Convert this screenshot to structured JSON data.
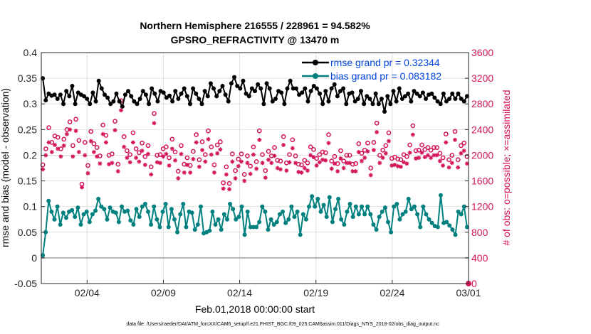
{
  "chart_data": {
    "type": "line",
    "title": "Northern Hemisphere 216555 / 228961 = 94.582%",
    "subtitle": "GPSRO_REFRACTIVITY @ 13470 m",
    "xlabel": "Feb.01,2018 00:00:00 start",
    "ylabel": "rmse and bias (model - observation)",
    "ylabel_right": "# of obs: o=possible; ×=assimilated",
    "footnote": "data file: /Users/raeder/DAI/ATM_forcXX/CAM6_setup/f.e21.FHIST_BGC.f09_025.CAM6assim.011/Diags_NTrS_2018-02/obs_diag_output.nc",
    "x_ticks": [
      "02/04",
      "02/09",
      "02/14",
      "02/19",
      "02/24",
      "03/01"
    ],
    "y_ticks": [
      "-0.05",
      "0",
      "0.05",
      "0.1",
      "0.15",
      "0.2",
      "0.25",
      "0.3",
      "0.35",
      "0.4"
    ],
    "y2_ticks": [
      "0",
      "400",
      "800",
      "1200",
      "1600",
      "2000",
      "2400",
      "2800",
      "3200",
      "3600"
    ],
    "ylim": [
      -0.05,
      0.4
    ],
    "y2lim": [
      0,
      3600
    ],
    "xlim": [
      0,
      28
    ],
    "legend": [
      "rmse grand pr = 0.32344",
      "bias grand pr = 0.083182"
    ],
    "colors": {
      "rmse": "#000000",
      "bias": "#00807f",
      "obs": "#d4145a",
      "zero_line": "#b3b3b3",
      "legend_text": "#0044dd"
    },
    "series": [
      {
        "name": "rmse",
        "values": [
          0.35,
          0.307,
          0.32,
          0.316,
          0.318,
          0.31,
          0.318,
          0.3,
          0.325,
          0.315,
          0.335,
          0.3,
          0.322,
          0.318,
          0.315,
          0.31,
          0.3,
          0.322,
          0.305,
          0.345,
          0.33,
          0.318,
          0.312,
          0.3,
          0.305,
          0.32,
          0.305,
          0.295,
          0.318,
          0.325,
          0.315,
          0.305,
          0.3,
          0.31,
          0.325,
          0.318,
          0.3,
          0.33,
          0.32,
          0.305,
          0.325,
          0.322,
          0.312,
          0.316,
          0.305,
          0.325,
          0.31,
          0.32,
          0.33,
          0.315,
          0.3,
          0.33,
          0.32,
          0.31,
          0.3,
          0.325,
          0.315,
          0.34,
          0.33,
          0.315,
          0.325,
          0.335,
          0.318,
          0.305,
          0.34,
          0.352,
          0.335,
          0.33,
          0.345,
          0.32,
          0.315,
          0.33,
          0.325,
          0.338,
          0.33,
          0.3,
          0.34,
          0.33,
          0.305,
          0.31,
          0.325,
          0.322,
          0.3,
          0.33,
          0.345,
          0.33,
          0.33,
          0.318,
          0.322,
          0.33,
          0.305,
          0.325,
          0.335,
          0.33,
          0.32,
          0.3,
          0.325,
          0.305,
          0.33,
          0.338,
          0.315,
          0.325,
          0.33,
          0.3,
          0.32,
          0.322,
          0.305,
          0.31,
          0.325,
          0.3,
          0.315,
          0.31,
          0.3,
          0.32,
          0.3,
          0.31,
          0.285,
          0.315,
          0.3,
          0.325,
          0.305,
          0.33,
          0.31,
          0.315,
          0.32,
          0.305,
          0.325,
          0.32,
          0.315,
          0.322,
          0.31,
          0.318,
          0.32,
          0.312,
          0.305,
          0.3,
          0.32,
          0.305,
          0.31,
          0.32,
          0.31,
          0.32,
          0.31,
          0.305,
          0.315
        ]
      },
      {
        "name": "bias",
        "values": [
          0.005,
          0.05,
          0.111,
          0.09,
          0.075,
          0.1,
          0.065,
          0.088,
          0.078,
          0.09,
          0.093,
          0.08,
          0.098,
          0.065,
          0.085,
          0.09,
          0.07,
          0.085,
          0.092,
          0.115,
          0.1,
          0.095,
          0.075,
          0.098,
          0.09,
          0.088,
          0.07,
          0.1,
          0.09,
          0.092,
          0.073,
          0.065,
          0.095,
          0.08,
          0.1,
          0.105,
          0.09,
          0.065,
          0.1,
          0.075,
          0.06,
          0.09,
          0.105,
          0.06,
          0.095,
          0.075,
          0.05,
          0.085,
          0.105,
          0.06,
          0.09,
          0.088,
          0.055,
          0.065,
          0.1,
          0.048,
          0.05,
          0.053,
          0.09,
          0.065,
          0.075,
          0.055,
          0.085,
          0.075,
          0.105,
          0.095,
          0.075,
          0.08,
          0.1,
          0.045,
          0.09,
          0.06,
          0.06,
          0.06,
          0.07,
          0.1,
          0.09,
          0.055,
          0.075,
          0.065,
          0.07,
          0.085,
          0.09,
          0.068,
          0.075,
          0.1,
          0.08,
          0.09,
          0.045,
          0.085,
          0.075,
          0.1,
          0.12,
          0.1,
          0.115,
          0.09,
          0.103,
          0.08,
          0.118,
          0.07,
          0.095,
          0.115,
          0.075,
          0.065,
          0.09,
          0.105,
          0.08,
          0.1,
          0.085,
          0.1,
          0.085,
          0.1,
          0.085,
          0.065,
          0.055,
          0.08,
          0.09,
          0.098,
          0.07,
          0.05,
          0.1,
          0.105,
          0.075,
          0.085,
          0.09,
          0.115,
          0.095,
          0.1,
          0.085,
          0.06,
          0.1,
          0.085,
          0.075,
          0.068,
          0.062,
          0.06,
          0.122,
          0.068,
          0.07,
          0.063,
          0.055,
          0.045,
          0.09,
          0.085,
          0.1,
          0.06
        ]
      },
      {
        "name": "possible",
        "values": [
          1850,
          2100,
          2430,
          2200,
          2300,
          2280,
          2100,
          2250,
          2400,
          2520,
          2150,
          2560,
          2230,
          1550,
          2200,
          1840,
          2370,
          2180,
          2120,
          1990,
          2470,
          2310,
          2000,
          2020,
          2530,
          1860,
          2850,
          2290,
          2070,
          2010,
          2350,
          2100,
          2040,
          2190,
          1980,
          2150,
          1820,
          2650,
          2000,
          2010,
          2100,
          2130,
          1960,
          2250,
          2050,
          1750,
          2150,
          1860,
          1960,
          1840,
          2060,
          2320,
          1930,
          2210,
          2010,
          2380,
          2130,
          1850,
          2160,
          2210,
          1570,
          1820,
          1560,
          2020,
          1760,
          1940,
          2020,
          1700,
          1990,
          1830,
          2130,
          1900,
          2380,
          2010,
          1760,
          2060,
          1990,
          2120,
          1920,
          1910,
          2290,
          1880,
          2010,
          2240,
          1990,
          1860,
          1850,
          1920,
          1880,
          2130,
          2090,
          1950,
          2010,
          2050,
          2040,
          2320,
          1910,
          1980,
          1870,
          2070,
          1910,
          2000,
          2000,
          1860,
          1870,
          2180,
          2030,
          2080,
          2190,
          1800,
          2200,
          2500,
          2000,
          2080,
          2150,
          2350,
          1950,
          1970,
          1940,
          1930,
          2010,
          1980,
          2160,
          2460,
          2070,
          2080,
          2160,
          2090,
          2120,
          2080,
          2120,
          2120,
          2030,
          1960,
          2330,
          1930,
          2000,
          2370,
          1930,
          2150,
          2190,
          1980
        ]
      },
      {
        "name": "assimilated",
        "values": [
          1780,
          2000,
          2200,
          2050,
          2160,
          2100,
          1980,
          2150,
          2330,
          2400,
          1980,
          2380,
          2050,
          1500,
          2000,
          1720,
          2220,
          2050,
          1980,
          1870,
          2330,
          2200,
          1860,
          1880,
          2390,
          1750,
          2700,
          2130,
          1960,
          1890,
          2200,
          1960,
          1900,
          2070,
          1850,
          2020,
          1700,
          2500,
          1890,
          1880,
          1980,
          2020,
          1840,
          2100,
          1920,
          1640,
          2020,
          1730,
          1850,
          1730,
          1940,
          2200,
          1820,
          2080,
          1900,
          2250,
          2010,
          1730,
          2030,
          2090,
          1480,
          1700,
          1470,
          1900,
          1640,
          1830,
          1900,
          1600,
          1880,
          1710,
          2010,
          1790,
          2240,
          1880,
          1650,
          1930,
          1880,
          1990,
          1800,
          1780,
          2160,
          1760,
          1890,
          2110,
          1880,
          1740,
          1730,
          1800,
          1760,
          2000,
          1970,
          1840,
          1890,
          1930,
          1920,
          2190,
          1790,
          1870,
          1750,
          1950,
          1800,
          1880,
          1880,
          1750,
          1750,
          2050,
          1910,
          1960,
          2060,
          1690,
          2080,
          2360,
          1880,
          1960,
          2030,
          2220,
          1840,
          1850,
          1830,
          1820,
          1890,
          1870,
          2040,
          2320,
          1950,
          1960,
          2040,
          1970,
          2000,
          1960,
          2000,
          2000,
          1910,
          1840,
          2200,
          1810,
          1880,
          2240,
          1810,
          2030,
          2070,
          1870
        ]
      }
    ]
  }
}
